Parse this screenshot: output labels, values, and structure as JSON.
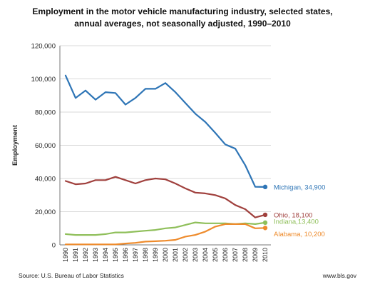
{
  "chart_data": {
    "type": "line",
    "title_line1": "Employment in the motor vehicle manufacturing industry, selected states,",
    "title_line2": "annual averages, not seasonally adjusted, 1990–2010",
    "xlabel": "",
    "ylabel": "Employment",
    "ylim": [
      0,
      120000
    ],
    "yticks": [
      0,
      20000,
      40000,
      60000,
      80000,
      100000,
      120000
    ],
    "ytick_labels": [
      "0",
      "20,000",
      "40,000",
      "60,000",
      "80,000",
      "100,000",
      "120,000"
    ],
    "x": [
      "1990",
      "1991",
      "1992",
      "1993",
      "1994",
      "1995",
      "1996",
      "1997",
      "1998",
      "1999",
      "2000",
      "2001",
      "2002",
      "2003",
      "2004",
      "2005",
      "2006",
      "2007",
      "2008",
      "2009",
      "2010"
    ],
    "grid": "horizontal",
    "legend": "end-of-line labels",
    "series": [
      {
        "name": "Michigan",
        "end_label": "Michigan, 34,900",
        "color": "#2e75b6",
        "values": [
          102000,
          88500,
          93000,
          87500,
          92000,
          91500,
          84500,
          88500,
          94000,
          94000,
          97500,
          92000,
          85500,
          79000,
          74000,
          67500,
          60500,
          58000,
          48000,
          35000,
          34900
        ]
      },
      {
        "name": "Ohio",
        "end_label": "Ohio, 18,100",
        "color": "#a0403d",
        "values": [
          38500,
          36500,
          37000,
          39000,
          39000,
          41000,
          39000,
          37000,
          39000,
          40000,
          39500,
          37000,
          34000,
          31500,
          31000,
          30000,
          28000,
          24000,
          21500,
          16500,
          18100
        ]
      },
      {
        "name": "Indiana",
        "end_label": "Indiana,13,400",
        "color": "#8fbf5a",
        "values": [
          6500,
          6000,
          6000,
          6000,
          6500,
          7500,
          7500,
          8000,
          8500,
          9000,
          10000,
          10500,
          12000,
          13500,
          13000,
          13000,
          13000,
          12500,
          13000,
          12500,
          13400
        ]
      },
      {
        "name": "Alabama",
        "end_label": "Alabama, 10,200",
        "color": "#ee8b2c",
        "values": [
          300,
          300,
          300,
          300,
          300,
          300,
          800,
          1200,
          2000,
          2200,
          2500,
          3000,
          5000,
          6000,
          8000,
          11000,
          12500,
          12500,
          12500,
          10000,
          10200
        ]
      }
    ]
  },
  "footer": {
    "source": "Source: U.S. Bureau of Labor Statistics",
    "site": "www.bls.gov"
  }
}
